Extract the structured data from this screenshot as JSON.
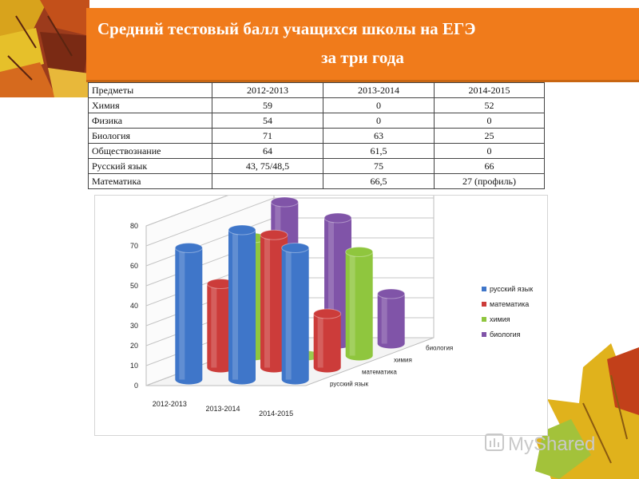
{
  "slide": {
    "title_line1": "Средний тестовый балл учащихся школы на ЕГЭ",
    "title_line2": "за три года",
    "accent": "#f07b1b"
  },
  "table": {
    "headers": [
      "Предметы",
      "2012-2013",
      "2013-2014",
      "2014-2015"
    ],
    "rows": [
      [
        "Химия",
        "59",
        "0",
        "52"
      ],
      [
        "Физика",
        "54",
        "0",
        "0"
      ],
      [
        "Биология",
        "71",
        "63",
        "25"
      ],
      [
        "Обществознание",
        "64",
        "61,5",
        "0"
      ],
      [
        "Русский язык",
        "43, 75/48,5",
        "75",
        "66"
      ],
      [
        "Математика",
        "",
        "66,5",
        "27 (профиль)"
      ]
    ]
  },
  "chart_data": {
    "type": "bar",
    "variant": "3d-cylinder",
    "categories": [
      "2012-2013",
      "2013-2014",
      "2014-2015"
    ],
    "depth_labels": [
      "русский язык",
      "математика",
      "химия",
      "биология"
    ],
    "series": [
      {
        "name": "русский язык",
        "color": "#3f76c9",
        "values": [
          66,
          75,
          66
        ]
      },
      {
        "name": "математика",
        "color": "#cc3c3a",
        "values": [
          42,
          66.5,
          27
        ]
      },
      {
        "name": "химия",
        "color": "#8fc63e",
        "values": [
          59,
          0,
          52
        ]
      },
      {
        "name": "биология",
        "color": "#8054a8",
        "values": [
          71,
          63,
          25
        ]
      }
    ],
    "yticks": [
      0,
      10,
      20,
      30,
      40,
      50,
      60,
      70,
      80
    ],
    "ylim": [
      0,
      80
    ],
    "legend": "right",
    "grid": true
  },
  "decor": {
    "watermark_text": "MyShared"
  }
}
